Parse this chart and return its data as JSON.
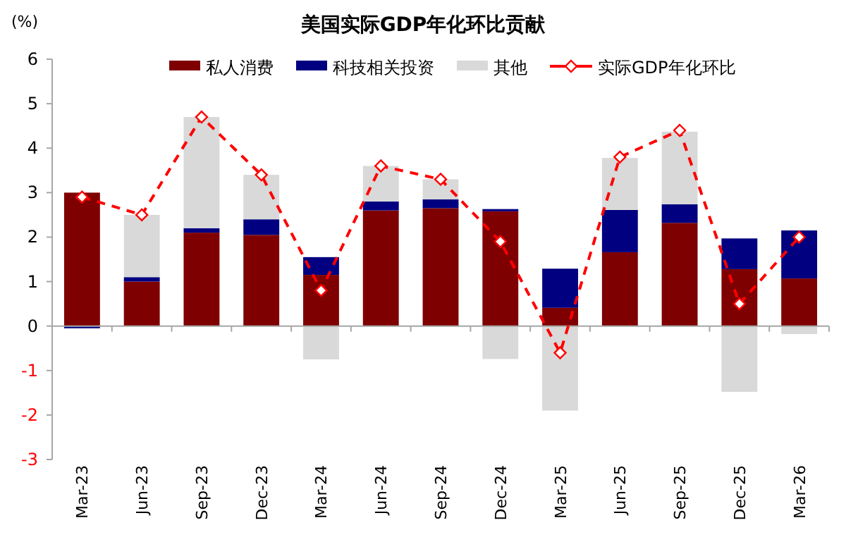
{
  "chart_data": {
    "type": "bar",
    "stacked": true,
    "title": "美国实际GDP年化环比贡献",
    "ylabel": "(%)",
    "categories": [
      "Mar-23",
      "Jun-23",
      "Sep-23",
      "Dec-23",
      "Mar-24",
      "Jun-24",
      "Sep-24",
      "Dec-24",
      "Mar-25",
      "Jun-25",
      "Sep-25",
      "Dec-25",
      "Mar-26"
    ],
    "series": [
      {
        "name": "私人消费",
        "color": "#7f0000",
        "values": [
          3.0,
          1.0,
          2.1,
          2.05,
          1.15,
          2.6,
          2.65,
          2.58,
          0.41,
          1.66,
          2.32,
          1.28,
          1.07
        ]
      },
      {
        "name": "科技相关投资",
        "color": "#000080",
        "values": [
          -0.05,
          0.1,
          0.1,
          0.35,
          0.4,
          0.2,
          0.2,
          0.05,
          0.88,
          0.95,
          0.42,
          0.69,
          1.08
        ]
      },
      {
        "name": "其他",
        "color": "#d9d9d9",
        "values": [
          0,
          1.4,
          2.5,
          1.0,
          -0.75,
          0.8,
          0.45,
          -0.74,
          -1.9,
          1.17,
          1.63,
          -1.48,
          -0.18
        ]
      },
      {
        "name": "实际GDP年化环比",
        "type": "line",
        "color": "#ff0000",
        "values": [
          2.9,
          2.5,
          4.7,
          3.4,
          0.8,
          3.6,
          3.3,
          1.9,
          -0.6,
          3.8,
          4.4,
          0.5,
          2.0
        ]
      }
    ],
    "marker": "diamond",
    "line_style": "dashed",
    "ylim": [
      -3,
      6
    ],
    "yticks": [
      -3,
      -2,
      -1,
      0,
      1,
      2,
      3,
      4,
      5,
      6
    ],
    "legend": "top"
  }
}
